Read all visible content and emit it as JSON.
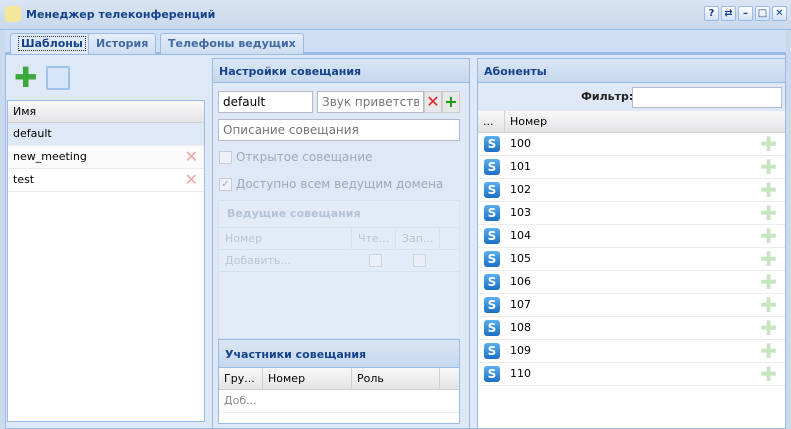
{
  "window": {
    "title": "Менеджер телеконференций",
    "buttons": [
      "?",
      "⇄",
      "–",
      "□",
      "✕"
    ]
  },
  "tabs": [
    {
      "label": "Шаблоны",
      "active": true
    },
    {
      "label": "История"
    },
    {
      "label": "Телефоны ведущих"
    }
  ],
  "templates": {
    "column": "Имя",
    "rows": [
      {
        "name": "default",
        "selected": true
      },
      {
        "name": "new_meeting"
      },
      {
        "name": "test"
      }
    ]
  },
  "settings": {
    "title": "Настройки совещания",
    "name_value": "default",
    "sound_placeholder": "Звук приветствия",
    "description_placeholder": "Описание совещания",
    "open_meeting_label": "Открытое совещание",
    "open_meeting_checked": false,
    "domain_label": "Доступно всем ведущим домена",
    "domain_checked": true,
    "hosts": {
      "title": "Ведущие совещания",
      "columns": [
        "Номер",
        "Чте...",
        "Зап..."
      ],
      "add_label": "Добавить..."
    },
    "participants": {
      "title": "Участники совещания",
      "columns": [
        "Гру...",
        "Номер",
        "Роль"
      ],
      "add_label": "Доб..."
    }
  },
  "subscribers": {
    "title": "Абоненты",
    "filter_label": "Фильтр:",
    "filter_value": "",
    "columns": [
      "...",
      "Номер"
    ],
    "rows": [
      "100",
      "101",
      "102",
      "103",
      "104",
      "105",
      "106",
      "107",
      "108",
      "109",
      "110"
    ]
  }
}
